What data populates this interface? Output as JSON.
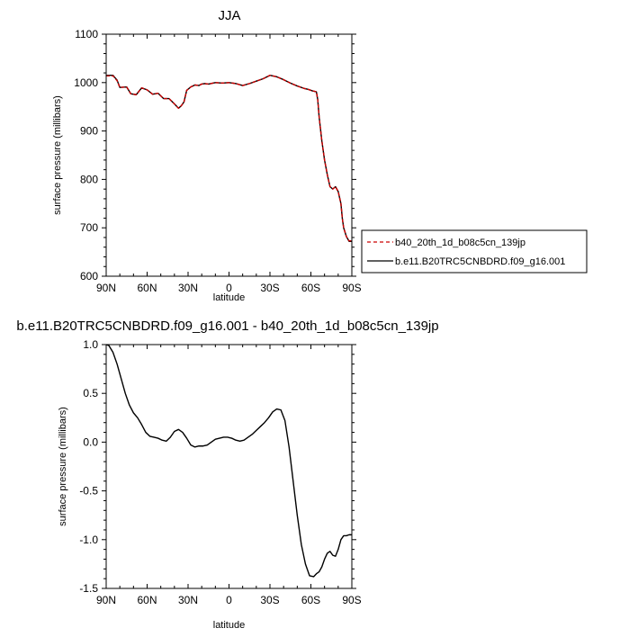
{
  "chart_data": [
    {
      "type": "line",
      "title": "JJA",
      "xlabel": "latitude",
      "ylabel": "surface pressure (millibars)",
      "xlim": [
        90,
        -90
      ],
      "ylim": [
        600,
        1100
      ],
      "x_ticks": [
        90,
        60,
        30,
        0,
        -30,
        -60,
        -90
      ],
      "x_tick_labels": [
        "90N",
        "60N",
        "30N",
        "0",
        "30S",
        "60S",
        "90S"
      ],
      "y_ticks": [
        600,
        700,
        800,
        900,
        1000,
        1100
      ],
      "y_tick_labels": [
        "600",
        "700",
        "800",
        "900",
        "1000",
        "1100"
      ],
      "legend_position": "right",
      "series": [
        {
          "name": "b40_20th_1d_b08c5cn_139jp",
          "color": "#cc0000",
          "dash": "dashed",
          "x": [
            90,
            85,
            82,
            80,
            75,
            72,
            68,
            64,
            60,
            56,
            52,
            48,
            44,
            40,
            37,
            35,
            33,
            31,
            28,
            25,
            22,
            20,
            18,
            15,
            10,
            5,
            0,
            -5,
            -10,
            -15,
            -20,
            -25,
            -30,
            -35,
            -40,
            -45,
            -50,
            -55,
            -58,
            -61,
            -64,
            -65,
            -66,
            -68,
            -70,
            -72,
            -74,
            -76,
            -78,
            -80,
            -82,
            -83,
            -84,
            -86,
            -88,
            -90
          ],
          "y": [
            1014,
            1014,
            1004,
            990,
            991,
            977,
            975,
            989,
            985,
            976,
            978,
            967,
            967,
            956,
            947,
            952,
            960,
            984,
            991,
            995,
            994,
            997,
            998,
            997,
            1000,
            999,
            1000,
            998,
            994,
            998,
            1003,
            1008,
            1015,
            1012,
            1006,
            999,
            993,
            988,
            986,
            983,
            981,
            965,
            930,
            880,
            840,
            810,
            785,
            780,
            785,
            775,
            750,
            720,
            700,
            682,
            673,
            673
          ]
        },
        {
          "name": "b.e11.B20TRC5CNBDRD.f09_g16.001",
          "color": "#000000",
          "dash": "solid",
          "x": [
            90,
            85,
            82,
            80,
            75,
            72,
            68,
            64,
            60,
            56,
            52,
            48,
            44,
            40,
            37,
            35,
            33,
            31,
            28,
            25,
            22,
            20,
            18,
            15,
            10,
            5,
            0,
            -5,
            -10,
            -15,
            -20,
            -25,
            -30,
            -35,
            -40,
            -45,
            -50,
            -55,
            -58,
            -61,
            -64,
            -65,
            -66,
            -68,
            -70,
            -72,
            -74,
            -76,
            -78,
            -80,
            -82,
            -83,
            -84,
            -86,
            -88,
            -90
          ],
          "y": [
            1015,
            1015,
            1005,
            990,
            991,
            977,
            975,
            989,
            985,
            976,
            978,
            967,
            967,
            956,
            947,
            952,
            960,
            984,
            991,
            995,
            994,
            997,
            998,
            997,
            1000,
            999,
            1000,
            998,
            994,
            998,
            1003,
            1008,
            1015,
            1012,
            1006,
            999,
            993,
            988,
            986,
            983,
            981,
            965,
            930,
            880,
            840,
            810,
            785,
            780,
            785,
            775,
            750,
            720,
            700,
            682,
            672,
            672
          ]
        }
      ]
    },
    {
      "type": "line",
      "title": "b.e11.B20TRC5CNBDRD.f09_g16.001 - b40_20th_1d_b08c5cn_139jp",
      "xlabel": "latitude",
      "ylabel": "surface pressure (millibars)",
      "xlim": [
        90,
        -90
      ],
      "ylim": [
        -1.5,
        1.0
      ],
      "x_ticks": [
        90,
        60,
        30,
        0,
        -30,
        -60,
        -90
      ],
      "x_tick_labels": [
        "90N",
        "60N",
        "30N",
        "0",
        "30S",
        "60S",
        "90S"
      ],
      "y_ticks": [
        -1.5,
        -1.0,
        -0.5,
        0.0,
        0.5,
        1.0
      ],
      "y_tick_labels": [
        "-1.5",
        "-1.0",
        "-0.5",
        "0.0",
        "0.5",
        "1.0"
      ],
      "series": [
        {
          "color": "#000000",
          "dash": "solid",
          "x": [
            90,
            88,
            85,
            82,
            79,
            76,
            73,
            70,
            67,
            64,
            61,
            58,
            55,
            52,
            49,
            46,
            43,
            40,
            37,
            34,
            31,
            28,
            25,
            22,
            19,
            16,
            13,
            10,
            7,
            4,
            1,
            -2,
            -5,
            -8,
            -11,
            -14,
            -17,
            -20,
            -23,
            -26,
            -29,
            -32,
            -35,
            -38,
            -41,
            -44,
            -47,
            -50,
            -53,
            -56,
            -59,
            -62,
            -64,
            -66,
            -68,
            -70,
            -72,
            -74,
            -76,
            -78,
            -80,
            -82,
            -84,
            -86,
            -88,
            -90
          ],
          "y": [
            1.0,
            0.99,
            0.92,
            0.8,
            0.65,
            0.5,
            0.38,
            0.3,
            0.25,
            0.18,
            0.1,
            0.06,
            0.05,
            0.04,
            0.02,
            0.01,
            0.05,
            0.11,
            0.13,
            0.1,
            0.04,
            -0.03,
            -0.05,
            -0.04,
            -0.04,
            -0.03,
            0.0,
            0.03,
            0.04,
            0.05,
            0.05,
            0.04,
            0.02,
            0.01,
            0.02,
            0.05,
            0.08,
            0.12,
            0.16,
            0.2,
            0.25,
            0.31,
            0.34,
            0.33,
            0.22,
            -0.05,
            -0.4,
            -0.75,
            -1.05,
            -1.25,
            -1.37,
            -1.38,
            -1.35,
            -1.33,
            -1.28,
            -1.2,
            -1.14,
            -1.12,
            -1.16,
            -1.17,
            -1.1,
            -1.0,
            -0.96,
            -0.96,
            -0.95,
            -0.95
          ]
        }
      ]
    }
  ]
}
